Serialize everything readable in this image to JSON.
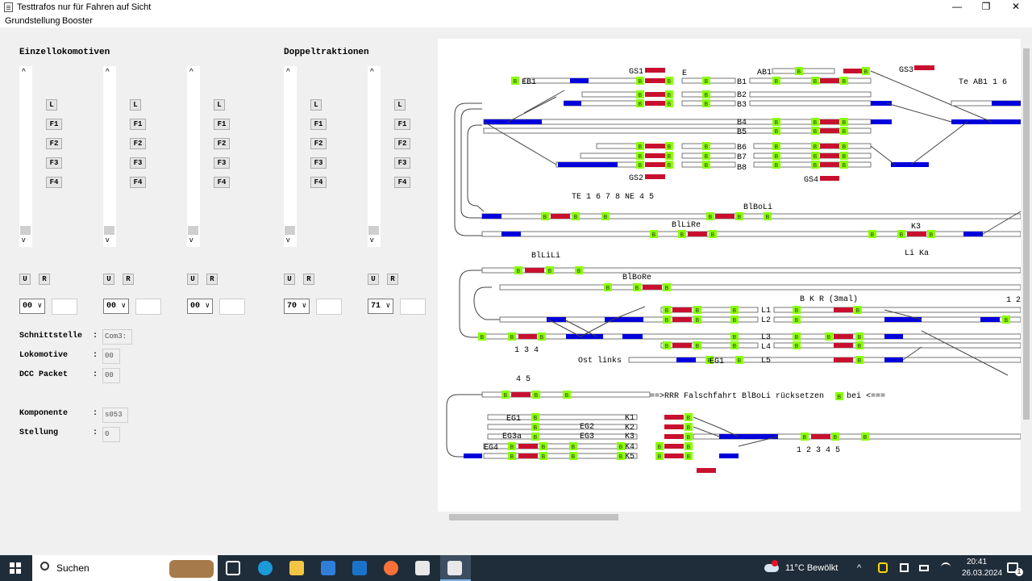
{
  "window": {
    "title": "Testtrafos nur für Fahren auf Sicht",
    "minimize": "—",
    "maximize": "❐",
    "close": "✕"
  },
  "menu": [
    "Grundstellung",
    "Booster"
  ],
  "sections": {
    "single": "Einzellokomotiven",
    "double": "Doppeltraktionen"
  },
  "loco_columns": [
    {
      "speed": "00",
      "buttons": [
        "L",
        "F1",
        "F2",
        "F3",
        "F4"
      ],
      "u": "U",
      "r": "R"
    },
    {
      "speed": "00",
      "buttons": [
        "L",
        "F1",
        "F2",
        "F3",
        "F4"
      ],
      "u": "U",
      "r": "R"
    },
    {
      "speed": "00",
      "buttons": [
        "L",
        "F1",
        "F2",
        "F3",
        "F4"
      ],
      "u": "U",
      "r": "R"
    },
    {
      "speed": "70",
      "buttons": [
        "L",
        "F1",
        "F2",
        "F3",
        "F4"
      ],
      "u": "U",
      "r": "R"
    },
    {
      "speed": "71",
      "buttons": [
        "L",
        "F1",
        "F2",
        "F3",
        "F4"
      ],
      "u": "U",
      "r": "R"
    }
  ],
  "scroll_arrows": {
    "up": "^",
    "down": "v"
  },
  "info": {
    "interface_label": "Schnittstelle",
    "interface_value": "Com3:",
    "loco_label": "Lokomotive",
    "loco_value": "00",
    "dcc_label": "DCC Packet",
    "dcc_value": "00",
    "component_label": "Komponente",
    "component_value": "s053",
    "position_label": "Stellung",
    "position_value": "0",
    "colon": ":"
  },
  "layout_labels": {
    "gs1": "GS1",
    "e": "E",
    "eb1": "EB1",
    "ab1": "AB1",
    "gs3": "GS3",
    "te_ab1": "Te AB1  1 6",
    "b1": "B1",
    "b2": "B2",
    "b3": "B3",
    "b4": "B4",
    "b5": "B5",
    "b6": "B6",
    "b7": "B7",
    "b8": "B8",
    "gs2": "GS2",
    "gs4": "GS4",
    "te": "TE 1 6 7 8  NE 4 5",
    "blboli": "BlBoLi",
    "bllire": "BlLiRe",
    "k3": "K3",
    "lika": "Li Ka",
    "bllili": "BlLiLi",
    "blbore": "BlBoRe",
    "bkr": "B K R (3mal)",
    "n12": "1 2",
    "l1": "L1",
    "l2": "L2",
    "l3": "L3",
    "l4": "L4",
    "l5": "L5",
    "n134": "1 3 4",
    "ostlinks": "Ost links",
    "eg1": "EG1",
    "n45": "4 5",
    "warning": "==>RRR Falschfahrt BlBoLi rücksetzen",
    "bei": "bei <===",
    "eg1b": "EG1",
    "eg2": "EG2",
    "eg3a": "EG3a",
    "eg3": "EG3",
    "eg4": "EG4",
    "k1": "K1",
    "k2": "K2",
    "k3b": "K3",
    "k4": "K4",
    "k5": "K5",
    "n12345": "1 2 3 4 5",
    "block_marker": "B"
  },
  "colors": {
    "occupied": "#c8102e",
    "route": "#0000dd",
    "block": "#88ff00",
    "track": "#ffffff"
  },
  "taskbar": {
    "search": "Suchen",
    "weather": "11°C  Bewölkt",
    "time": "20:41",
    "date": "26.03.2024",
    "notifications": "1"
  }
}
